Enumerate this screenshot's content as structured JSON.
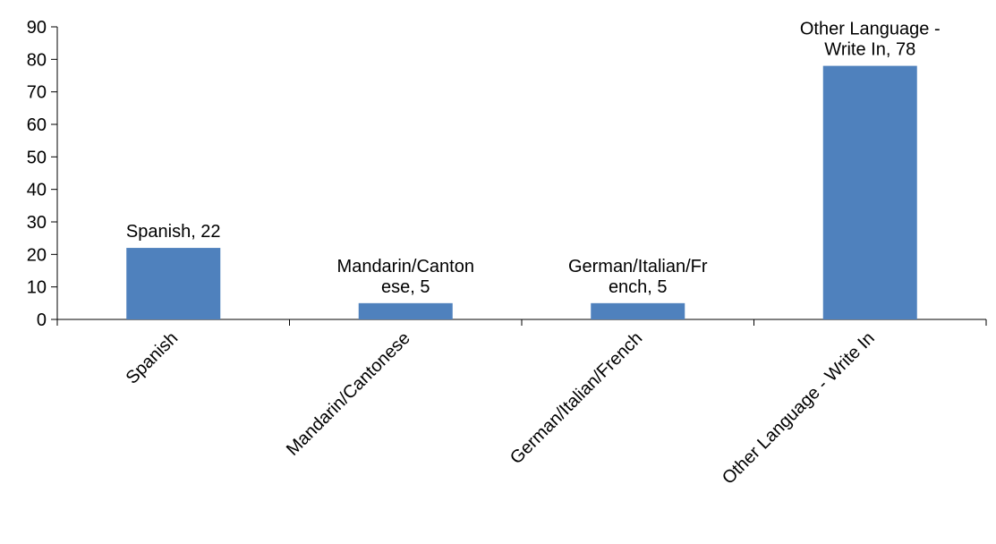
{
  "chart_data": {
    "type": "bar",
    "categories": [
      "Spanish",
      "Mandarin/Cantonese",
      "German/Italian/French",
      "Other Language - Write In"
    ],
    "values": [
      22,
      5,
      5,
      78
    ],
    "data_labels": [
      [
        "Spanish, 22"
      ],
      [
        "Mandarin/Canton",
        "ese, 5"
      ],
      [
        "German/Italian/Fr",
        "ench, 5"
      ],
      [
        "Other Language -",
        "Write In, 78"
      ]
    ],
    "y_ticks": [
      "0",
      "10",
      "20",
      "30",
      "40",
      "50",
      "60",
      "70",
      "80",
      "90"
    ],
    "ylim": [
      0,
      90
    ],
    "title": "",
    "xlabel": "",
    "ylabel": "",
    "grid": false,
    "legend": "none",
    "bar_color": "#4f81bd",
    "axis_color": "#000000"
  }
}
